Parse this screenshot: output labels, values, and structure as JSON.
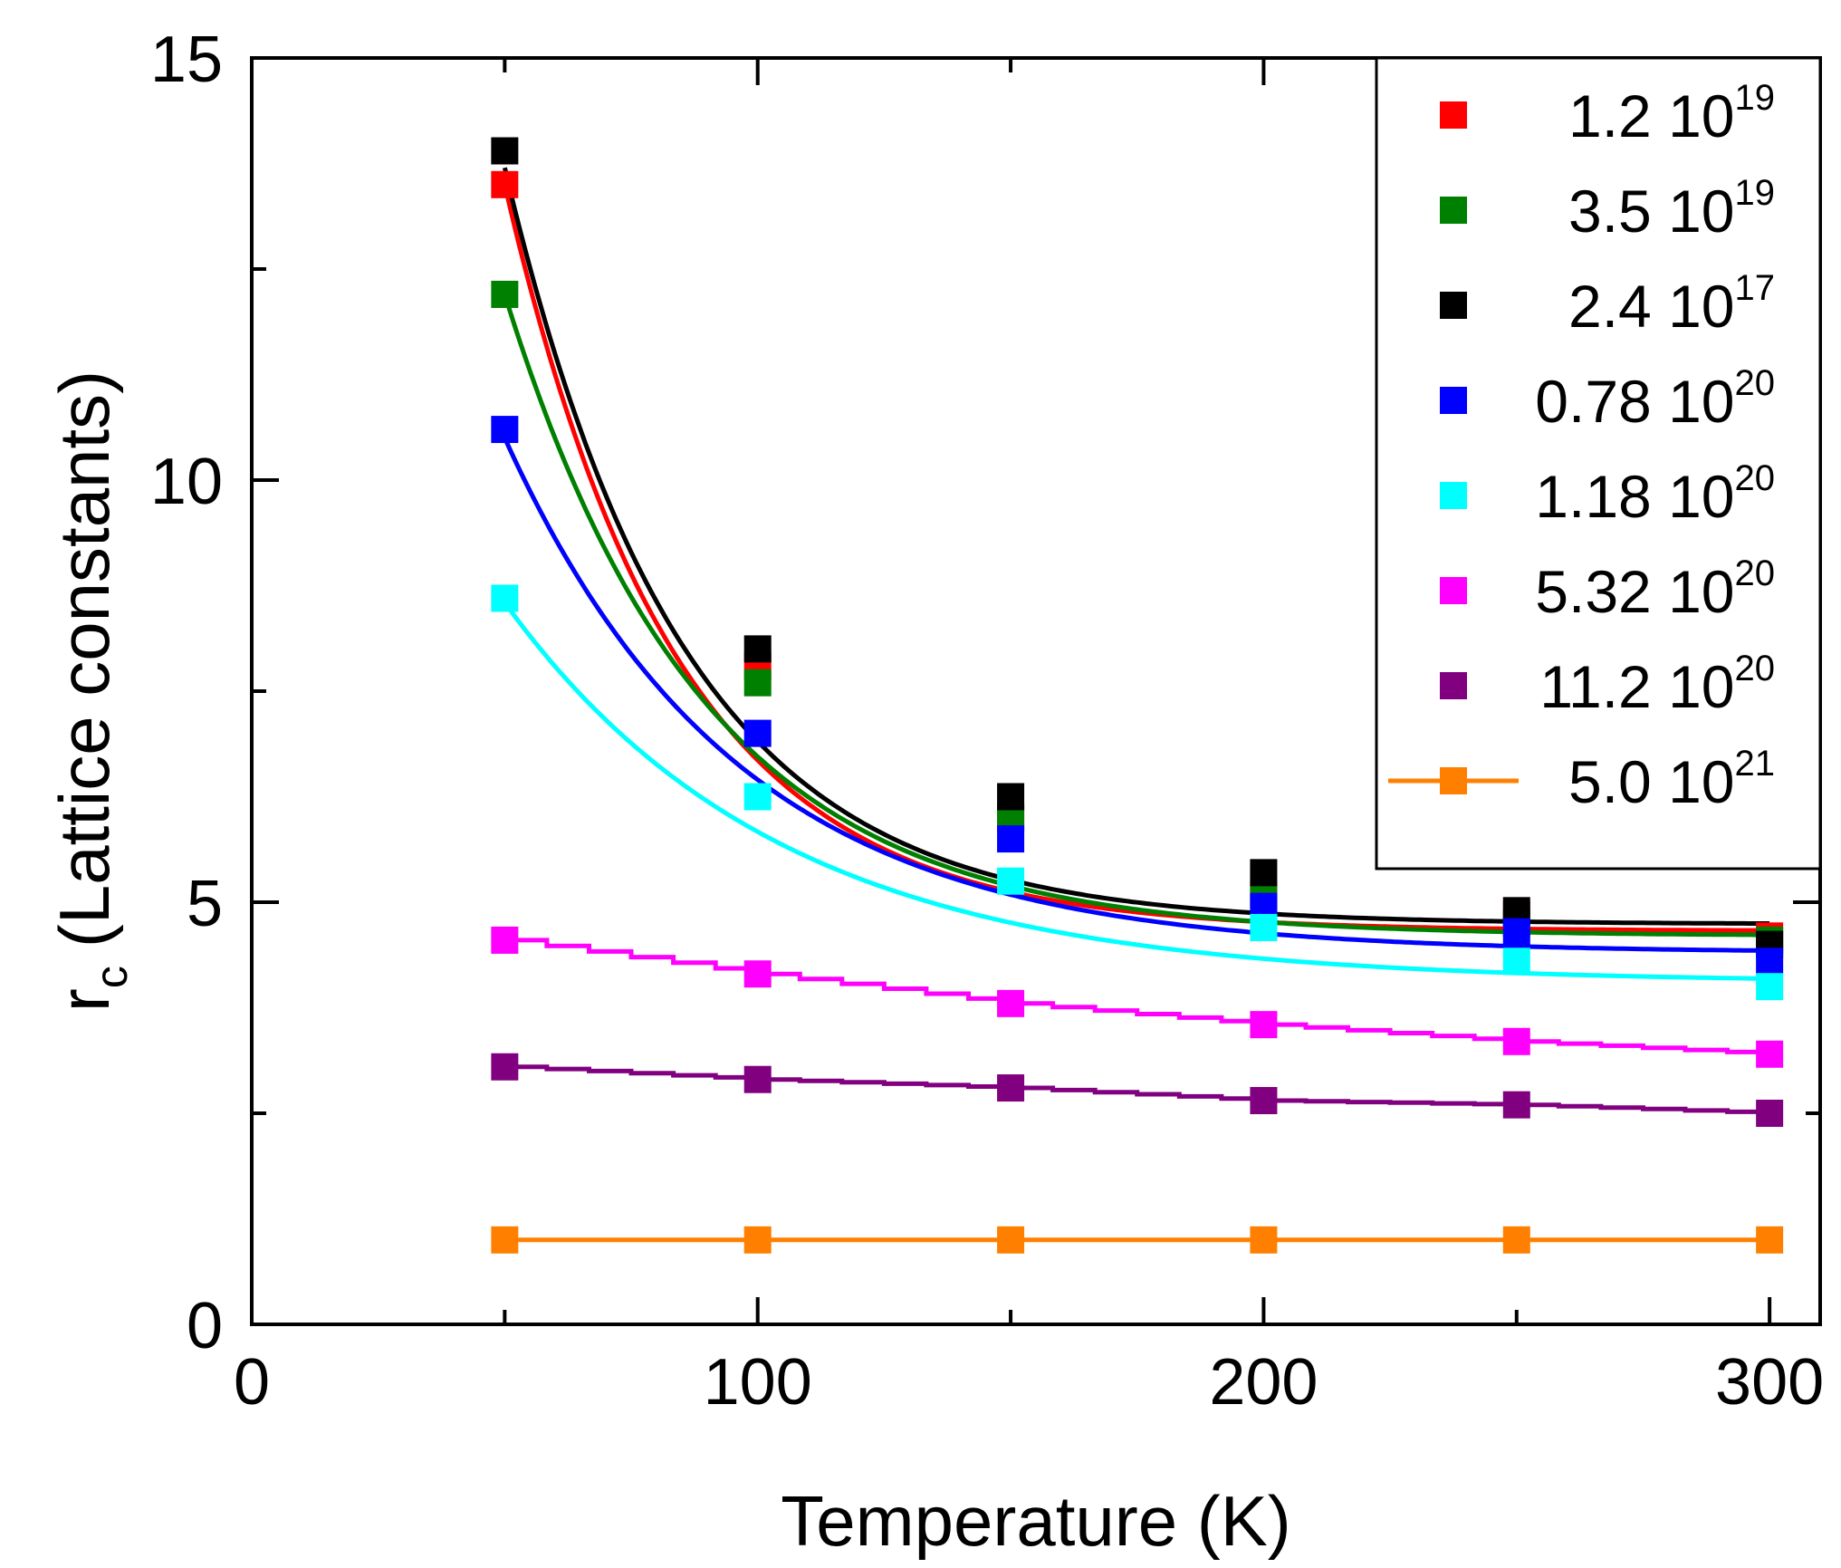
{
  "chart_data": {
    "type": "line",
    "title": "",
    "xlabel": "Temperature (K)",
    "ylabel": "(Lattice constants)",
    "ylabel_main": "r",
    "ylabel_sub": "c",
    "xlim": [
      0,
      310
    ],
    "ylim": [
      0,
      15
    ],
    "xticks": [
      0,
      100,
      200,
      300
    ],
    "yticks": [
      0,
      5,
      10,
      15
    ],
    "x_minor_ticks": [
      50,
      150,
      250
    ],
    "y_minor_ticks": [
      2.5,
      7.5,
      12.5
    ],
    "grid": false,
    "legend_position": "top-right",
    "x": [
      50,
      100,
      150,
      200,
      250,
      300
    ],
    "series": [
      {
        "name": "1.2 10^19",
        "label_base": "1.2 10",
        "label_exp": "19",
        "color": "#ff0000",
        "values": [
          13.5,
          7.8,
          6.0,
          5.1,
          4.85,
          4.6
        ],
        "fit": {
          "a": 4.66,
          "b": 8.84,
          "k": 0.0295
        }
      },
      {
        "name": "3.5 10^19",
        "label_base": "3.5 10",
        "label_exp": "19",
        "color": "#008000",
        "values": [
          12.2,
          7.6,
          6.0,
          5.05,
          4.75,
          4.55
        ],
        "fit": {
          "a": 4.6,
          "b": 7.6,
          "k": 0.0255
        }
      },
      {
        "name": "2.4 10^17",
        "label_base": "2.4 10",
        "label_exp": "17",
        "color": "#000000",
        "values": [
          13.9,
          8.0,
          6.25,
          5.35,
          4.9,
          4.5
        ],
        "fit": {
          "a": 4.74,
          "b": 8.96,
          "k": 0.0284
        }
      },
      {
        "name": "0.78 10^20",
        "label_base": "0.78 10",
        "label_exp": "20",
        "color": "#0000ff",
        "values": [
          10.6,
          7.0,
          5.75,
          4.95,
          4.65,
          4.3
        ],
        "fit": {
          "a": 4.4,
          "b": 6.1,
          "k": 0.0218
        }
      },
      {
        "name": "1.18 10^20",
        "label_base": "1.18 10",
        "label_exp": "20",
        "color": "#00ffff",
        "values": [
          8.6,
          6.25,
          5.25,
          4.7,
          4.3,
          4.0
        ],
        "fit": {
          "a": 4.05,
          "b": 4.5,
          "k": 0.0185
        }
      },
      {
        "name": "5.32 10^20",
        "label_base": "5.32 10",
        "label_exp": "20",
        "color": "#ff00ff",
        "values": [
          4.55,
          4.15,
          3.8,
          3.55,
          3.35,
          3.2
        ]
      },
      {
        "name": "11.2 10^20",
        "label_base": "11.2 10",
        "label_exp": "20",
        "color": "#800080",
        "values": [
          3.05,
          2.9,
          2.8,
          2.65,
          2.6,
          2.5
        ]
      },
      {
        "name": "5.0 10^21",
        "label_base": "5.0 10",
        "label_exp": "21",
        "color": "#ff8000",
        "connected": true,
        "values": [
          1.0,
          1.0,
          1.0,
          1.0,
          1.0,
          1.0
        ]
      }
    ]
  }
}
